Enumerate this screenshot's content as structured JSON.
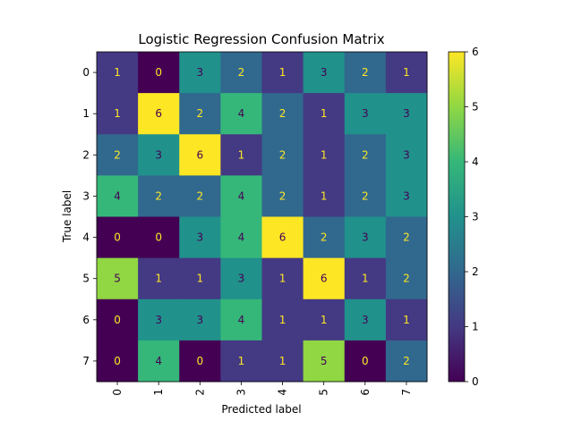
{
  "chart_data": {
    "type": "heatmap",
    "title": "Logistic Regression Confusion Matrix",
    "xlabel": "Predicted label",
    "ylabel": "True label",
    "x_categories": [
      "0",
      "1",
      "2",
      "3",
      "4",
      "5",
      "6",
      "7"
    ],
    "y_categories": [
      "0",
      "1",
      "2",
      "3",
      "4",
      "5",
      "6",
      "7"
    ],
    "values": [
      [
        1,
        0,
        3,
        2,
        1,
        3,
        2,
        1
      ],
      [
        1,
        6,
        2,
        4,
        2,
        1,
        3,
        3
      ],
      [
        2,
        3,
        6,
        1,
        2,
        1,
        2,
        3
      ],
      [
        4,
        2,
        2,
        4,
        2,
        1,
        2,
        3
      ],
      [
        0,
        0,
        3,
        4,
        6,
        2,
        3,
        2
      ],
      [
        5,
        1,
        1,
        3,
        1,
        6,
        1,
        2
      ],
      [
        0,
        3,
        3,
        4,
        1,
        1,
        3,
        1
      ],
      [
        0,
        4,
        0,
        1,
        1,
        5,
        0,
        2
      ]
    ],
    "colormap": "viridis",
    "color_range": [
      0,
      6
    ],
    "colorbar_ticks": [
      "0",
      "1",
      "2",
      "3",
      "4",
      "5",
      "6"
    ],
    "colors": {
      "text_dark": "#440154",
      "text_light": "#fde725"
    }
  }
}
